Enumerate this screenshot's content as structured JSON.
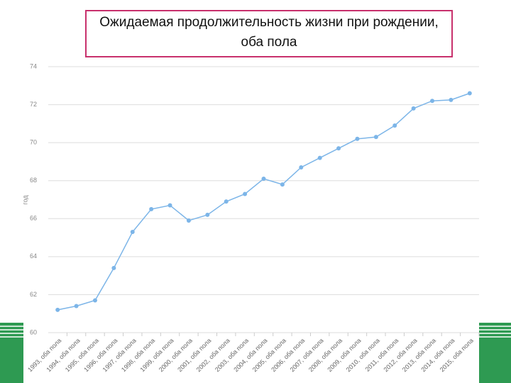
{
  "chart_data": {
    "type": "line",
    "title": "Ожидаемая продолжительность жизни при рождении, оба пола",
    "y_label": "год",
    "categories": [
      "1993, оба пола",
      "1994, оба пола",
      "1995, оба пола",
      "1996, оба пола",
      "1997, оба пола",
      "1998, оба пола",
      "1999, оба пола",
      "2000, оба пола",
      "2001, оба пола",
      "2002, оба пола",
      "2003, оба пола",
      "2004, оба пола",
      "2005, оба пола",
      "2006, оба пола",
      "2007, оба пола",
      "2008, оба пола",
      "2009, оба пола",
      "2010, оба пола",
      "2011, оба пола",
      "2012, оба пола",
      "2013, оба пола",
      "2014, оба пола",
      "2015, оба пола"
    ],
    "series": [
      {
        "name": "оба пола",
        "color": "#7cb5e8",
        "values": [
          61.2,
          61.4,
          61.7,
          63.4,
          65.3,
          66.5,
          66.7,
          65.9,
          66.2,
          66.9,
          67.3,
          68.1,
          67.8,
          68.7,
          69.2,
          69.7,
          70.2,
          70.3,
          70.9,
          71.8,
          72.2,
          72.25,
          72.6
        ]
      }
    ],
    "ylim": [
      60,
      74
    ],
    "yticks": [
      60,
      62,
      64,
      66,
      68,
      70,
      72,
      74
    ],
    "grid": true
  }
}
